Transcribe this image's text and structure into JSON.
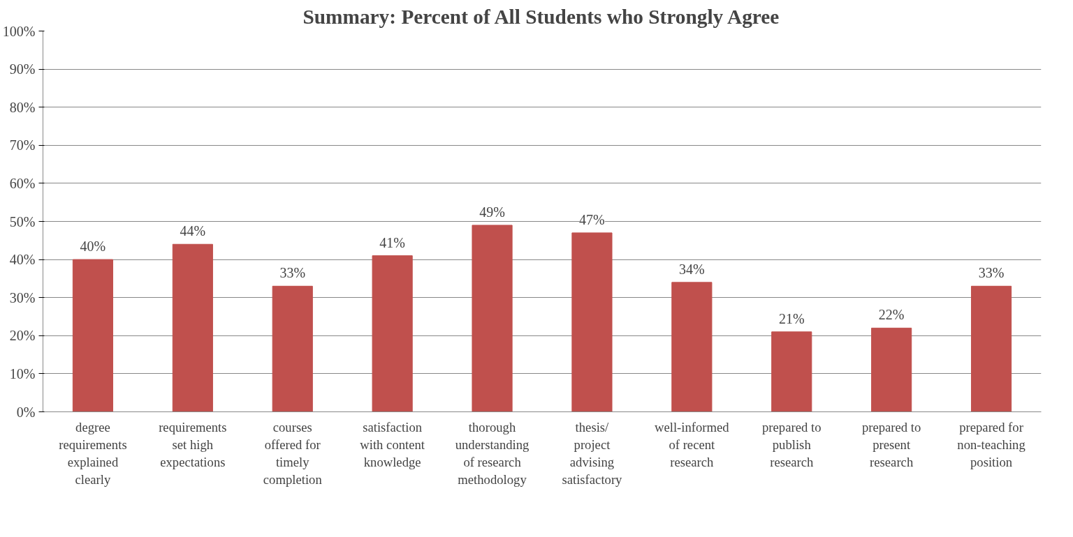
{
  "chart_data": {
    "type": "bar",
    "title": "Summary: Percent of All Students who Strongly Agree",
    "categories": [
      "degree requirements explained clearly",
      "requirements set high expectations",
      "courses offered for timely completion",
      "satisfaction with content knowledge",
      "thorough understanding of research methodology",
      "thesis/ project advising satisfactory",
      "well-informed of recent research",
      "prepared to publish research",
      "prepared to present research",
      "prepared for non-teaching position"
    ],
    "values": [
      40,
      44,
      33,
      41,
      49,
      47,
      34,
      21,
      22,
      33
    ],
    "color": "#c0504d",
    "value_labels": [
      "40%",
      "44%",
      "33%",
      "41%",
      "49%",
      "47%",
      "34%",
      "21%",
      "22%",
      "33%"
    ],
    "ylim": [
      0,
      100
    ],
    "yticks": [
      {
        "value": 0,
        "label": "0%"
      },
      {
        "value": 10,
        "label": "10%"
      },
      {
        "value": 20,
        "label": "20%"
      },
      {
        "value": 30,
        "label": "30%"
      },
      {
        "value": 40,
        "label": "40%"
      },
      {
        "value": 50,
        "label": "50%"
      },
      {
        "value": 60,
        "label": "60%"
      },
      {
        "value": 70,
        "label": "70%"
      },
      {
        "value": 80,
        "label": "80%"
      },
      {
        "value": 90,
        "label": "90%"
      },
      {
        "value": 100,
        "label": "100%"
      }
    ],
    "grid": "y"
  }
}
